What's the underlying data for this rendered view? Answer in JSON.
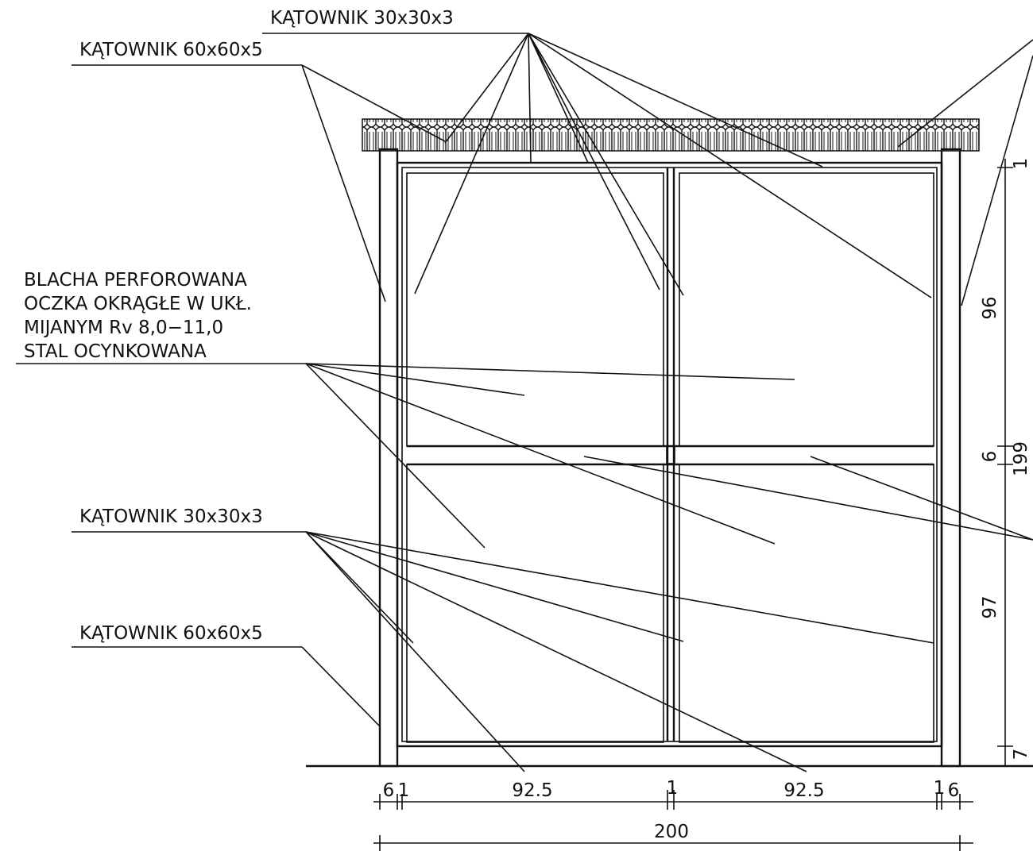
{
  "labels": {
    "top_angle": "KĄTOWNIK 30x30x3",
    "top_post": "KĄTOWNIK 60x60x5",
    "sheet": [
      "BLACHA PERFOROWANA",
      "OCZKA OKRĄGŁE W UKŁ.",
      "MIJANYM Rv 8,0−11,0",
      "STAL OCYNKOWANA"
    ],
    "bottom_angle": "KĄTOWNIK 30x30x3",
    "bottom_post": "KĄTOWNIK 60x60x5"
  },
  "dimensions": {
    "bottom": [
      "6",
      "1",
      "92.5",
      "1",
      "92.5",
      "1",
      "6"
    ],
    "overall": "200",
    "right": [
      "1",
      "96",
      "6",
      "97",
      "7"
    ],
    "right_total": "199"
  }
}
